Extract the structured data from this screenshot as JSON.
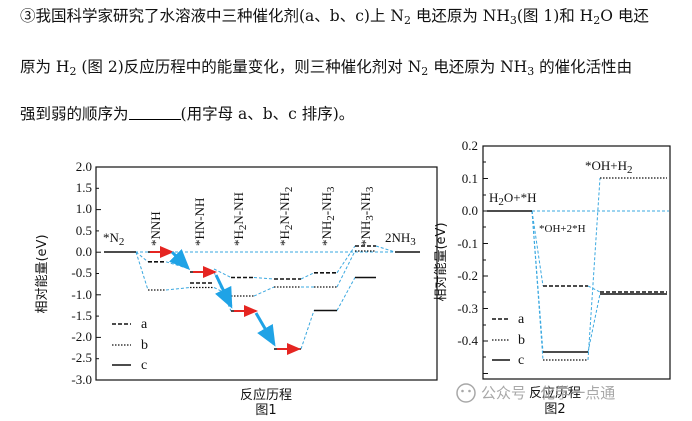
{
  "question": {
    "line1": "③我国科学家研究了水溶液中三种催化剂(a、b、c)上 N₂ 电还原为 NH₃(图 1)和 H₂O 电还",
    "line2": "原为 H₂ (图 2)反应历程中的能量变化，则三种催化剂对 N₂ 电还原为 NH₃ 的催化活性由",
    "line3a": "强到弱的顺序为",
    "line3b": "(用字母 a、b、c 排序)。"
  },
  "fig1": {
    "caption": "图1",
    "xlabel": "反应历程",
    "ylabel": "相对能量(eV)",
    "yticks": [
      "2.0",
      "1.5",
      "1.0",
      "0.5",
      "0.0",
      "-0.5",
      "-1.0",
      "-1.5",
      "-2.0",
      "-2.5",
      "-3.0"
    ],
    "species": [
      "*N2",
      "*NNH",
      "*HN-NH",
      "*H2N-NH",
      "*H2N-NH2",
      "*NH2-NH3",
      "*NH3-NH3",
      "2NH3"
    ],
    "legend": [
      "a",
      "b",
      "c"
    ]
  },
  "fig2": {
    "caption": "图2",
    "xlabel": "反应历程",
    "ylabel": "相对能量(eV)",
    "yticks": [
      "0.2",
      "0.1",
      "0.0",
      "-0.1",
      "-0.2",
      "-0.3",
      "-0.4"
    ],
    "species": [
      "H2O+*H",
      "*OH+2*H",
      "*OH+H2"
    ],
    "legend": [
      "a",
      "b",
      "c"
    ]
  },
  "watermark": "公众号 · 化学一点通",
  "colors": {
    "connector": "#3aa8e0",
    "arrow_blue": "#1fa3e6",
    "arrow_red": "#e52521",
    "line": "#111111"
  },
  "chart_data": [
    {
      "type": "line",
      "title": "图1",
      "xlabel": "反应历程",
      "ylabel": "相对能量(eV)",
      "ylim": [
        -3.0,
        2.0
      ],
      "categories": [
        "*N2",
        "*NNH",
        "*HN-NH",
        "*H2N-NH",
        "*H2N-NH2",
        "*NH2-NH3",
        "*NH3-NH3",
        "2NH3"
      ],
      "series": [
        {
          "name": "a",
          "values": [
            0.0,
            -0.45,
            -0.8,
            -0.6,
            -0.65,
            -0.5,
            0.15,
            0.0
          ]
        },
        {
          "name": "b",
          "values": [
            0.0,
            -0.88,
            -0.9,
            -1.05,
            -0.65,
            -0.65,
            0.02,
            0.0
          ]
        },
        {
          "name": "c",
          "values": [
            0.0,
            0.0,
            -0.48,
            -1.38,
            -2.3,
            -1.38,
            -0.6,
            0.0
          ]
        }
      ]
    },
    {
      "type": "line",
      "title": "图2",
      "xlabel": "反应历程",
      "ylabel": "相对能量(eV)",
      "ylim": [
        -0.48,
        0.22
      ],
      "categories": [
        "H2O+*H",
        "*OH+2*H",
        "*OH+H2"
      ],
      "series": [
        {
          "name": "a",
          "values": [
            0.0,
            -0.22,
            -0.24
          ]
        },
        {
          "name": "b",
          "values": [
            0.0,
            -0.46,
            0.1
          ]
        },
        {
          "name": "c",
          "values": [
            0.0,
            -0.43,
            -0.25
          ]
        }
      ]
    }
  ]
}
